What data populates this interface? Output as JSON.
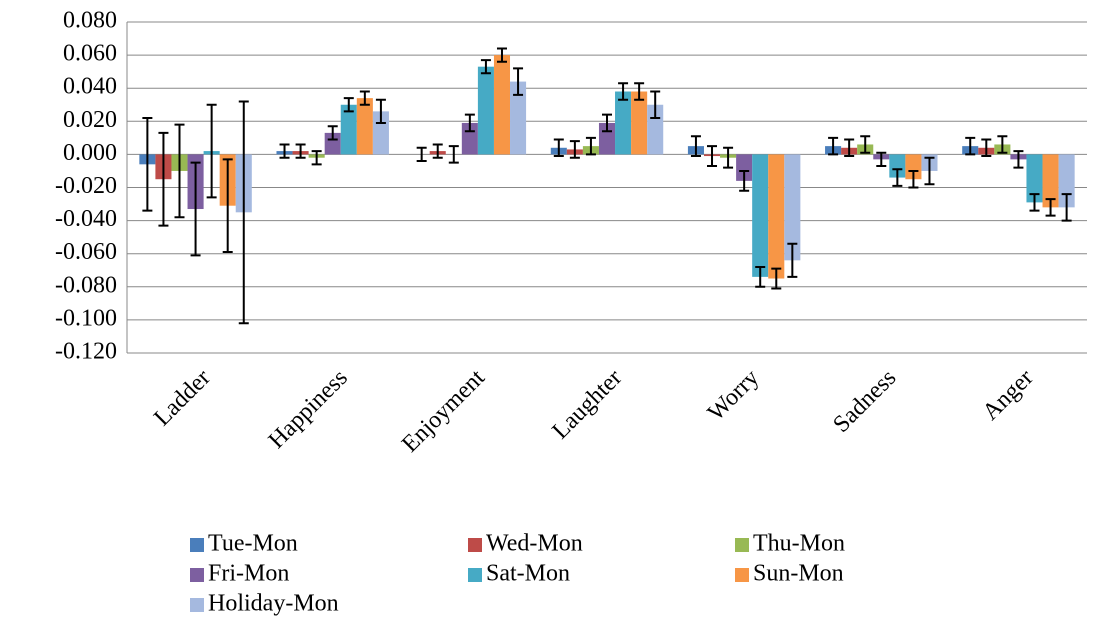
{
  "chart_data": {
    "type": "bar",
    "categories": [
      "Ladder",
      "Happiness",
      "Enjoyment",
      "Laughter",
      "Worry",
      "Sadness",
      "Anger"
    ],
    "series": [
      {
        "name": "Tue-Mon",
        "color": "#4a7ebb",
        "values": [
          -0.006,
          0.002,
          0.0,
          0.004,
          0.005,
          0.005,
          0.005
        ],
        "errors": [
          0.028,
          0.004,
          0.004,
          0.005,
          0.006,
          0.005,
          0.005
        ]
      },
      {
        "name": "Wed-Mon",
        "color": "#be4b48",
        "values": [
          -0.015,
          0.002,
          0.002,
          0.003,
          -0.001,
          0.004,
          0.004
        ],
        "errors": [
          0.028,
          0.004,
          0.004,
          0.005,
          0.006,
          0.005,
          0.005
        ]
      },
      {
        "name": "Thu-Mon",
        "color": "#98b954",
        "values": [
          -0.01,
          -0.002,
          0.0,
          0.005,
          -0.002,
          0.006,
          0.006
        ],
        "errors": [
          0.028,
          0.004,
          0.005,
          0.005,
          0.006,
          0.005,
          0.005
        ]
      },
      {
        "name": "Fri-Mon",
        "color": "#7d5fa0",
        "values": [
          -0.033,
          0.013,
          0.019,
          0.019,
          -0.016,
          -0.003,
          -0.003
        ],
        "errors": [
          0.028,
          0.004,
          0.005,
          0.005,
          0.006,
          0.004,
          0.005
        ]
      },
      {
        "name": "Sat-Mon",
        "color": "#46aac5",
        "values": [
          0.002,
          0.03,
          0.053,
          0.038,
          -0.074,
          -0.014,
          -0.029
        ],
        "errors": [
          0.028,
          0.004,
          0.004,
          0.005,
          0.006,
          0.005,
          0.005
        ]
      },
      {
        "name": "Sun-Mon",
        "color": "#f79646",
        "values": [
          -0.031,
          0.034,
          0.06,
          0.038,
          -0.075,
          -0.015,
          -0.032
        ],
        "errors": [
          0.028,
          0.004,
          0.004,
          0.005,
          0.006,
          0.005,
          0.005
        ]
      },
      {
        "name": "Holiday-Mon",
        "color": "#a5b9df",
        "values": [
          -0.035,
          0.026,
          0.044,
          0.03,
          -0.064,
          -0.01,
          -0.032
        ],
        "errors": [
          0.067,
          0.007,
          0.008,
          0.008,
          0.01,
          0.008,
          0.008
        ]
      }
    ],
    "ylim": [
      -0.12,
      0.08
    ],
    "yticks": [
      {
        "value": -0.12,
        "label": "-0.120"
      },
      {
        "value": -0.1,
        "label": "-0.100"
      },
      {
        "value": -0.08,
        "label": "-0.080"
      },
      {
        "value": -0.06,
        "label": "-0.060"
      },
      {
        "value": -0.04,
        "label": "-0.040"
      },
      {
        "value": -0.02,
        "label": "-0.020"
      },
      {
        "value": 0,
        "label": "0.000"
      },
      {
        "value": 0.02,
        "label": "0.020"
      },
      {
        "value": 0.04,
        "label": "0.040"
      },
      {
        "value": 0.06,
        "label": "0.060"
      },
      {
        "value": 0.08,
        "label": "0.080"
      }
    ],
    "grid": true,
    "legend": "bottom"
  }
}
